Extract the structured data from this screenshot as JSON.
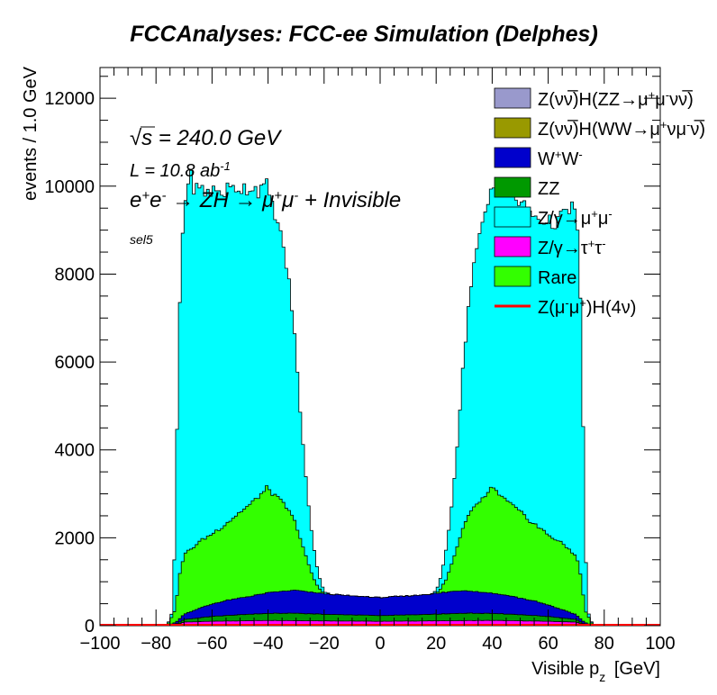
{
  "chart_data": {
    "type": "stacked-histogram",
    "title": "FCCAnalyses: FCC-ee Simulation (Delphes)",
    "xlabel": "Visible p",
    "xlabel_sub": "z",
    "xlabel_unit": "[GeV]",
    "ylabel": "events / 1.0 GeV",
    "xlim": [
      -100,
      100
    ],
    "ylim": [
      0,
      12700
    ],
    "x_ticks": [
      "−100",
      "−80",
      "−60",
      "−40",
      "−20",
      "0",
      "20",
      "40",
      "60",
      "80",
      "100"
    ],
    "y_ticks": [
      "0",
      "2000",
      "4000",
      "6000",
      "8000",
      "10000",
      "12000"
    ],
    "annotations": {
      "sqrt_s": "s = 240.0 GeV",
      "lumi": "L = 10.8 ab",
      "lumi_exp": "-1",
      "process_html": "e<tspan baseline-shift=\"super\" font-size=\"15\">+</tspan>e<tspan baseline-shift=\"super\" font-size=\"15\">-</tspan> → ZH → μ<tspan baseline-shift=\"super\" font-size=\"15\">+</tspan>μ<tspan baseline-shift=\"super\" font-size=\"15\">-</tspan> + Invisible",
      "selection": "sel5"
    },
    "legend_position": "top-right",
    "legend": [
      {
        "label_html": "Z(νν̅)H(ZZ→μ<tspan baseline-shift=\"super\" font-size=\"13\">+</tspan>μ<tspan baseline-shift=\"super\" font-size=\"13\">-</tspan>νν̅)",
        "color": "#9999cc",
        "kind": "box"
      },
      {
        "label_html": "Z(νν̅)H(WW→μ<tspan baseline-shift=\"super\" font-size=\"13\">+</tspan>νμ<tspan baseline-shift=\"super\" font-size=\"13\">-</tspan>ν̅)",
        "color": "#999900",
        "kind": "box"
      },
      {
        "label_html": "W<tspan baseline-shift=\"super\" font-size=\"13\">+</tspan>W<tspan baseline-shift=\"super\" font-size=\"13\">-</tspan>",
        "color": "#0000cc",
        "kind": "box"
      },
      {
        "label_html": "ZZ",
        "color": "#009900",
        "kind": "box"
      },
      {
        "label_html": "Z/γ→μ<tspan baseline-shift=\"super\" font-size=\"13\">+</tspan>μ<tspan baseline-shift=\"super\" font-size=\"13\">-</tspan>",
        "color": "#00ffff",
        "kind": "box"
      },
      {
        "label_html": "Z/γ→τ<tspan baseline-shift=\"super\" font-size=\"13\">+</tspan>τ<tspan baseline-shift=\"super\" font-size=\"13\">-</tspan>",
        "color": "#ff00ff",
        "kind": "box"
      },
      {
        "label_html": "Rare",
        "color": "#33ff00",
        "kind": "box"
      },
      {
        "label_html": "Z(μ<tspan baseline-shift=\"super\" font-size=\"13\">-</tspan>μ<tspan baseline-shift=\"super\" font-size=\"13\">+</tspan>)H(4ν)",
        "color": "#ff0000",
        "kind": "line"
      }
    ],
    "series": [
      {
        "name": "Z/γ→τ+τ-",
        "color": "#ff00ff",
        "x": [
          -76,
          -73,
          -70,
          -60,
          -50,
          -40,
          -30,
          -20,
          -10,
          0,
          10,
          20,
          30,
          40,
          50,
          60,
          70,
          73,
          76
        ],
        "y": [
          0,
          20,
          80,
          100,
          110,
          120,
          115,
          110,
          105,
          100,
          105,
          110,
          115,
          120,
          110,
          100,
          80,
          20,
          0
        ]
      },
      {
        "name": "ZZ",
        "color": "#009900",
        "x": [
          -76,
          -73,
          -70,
          -60,
          -50,
          -40,
          -30,
          -20,
          -10,
          0,
          10,
          20,
          30,
          40,
          50,
          60,
          70,
          73,
          76
        ],
        "y": [
          0,
          10,
          60,
          110,
          140,
          160,
          170,
          150,
          140,
          130,
          140,
          150,
          170,
          160,
          140,
          110,
          60,
          10,
          0
        ]
      },
      {
        "name": "W+W-",
        "color": "#0000cc",
        "x": [
          -76,
          -72,
          -70,
          -65,
          -60,
          -55,
          -50,
          -45,
          -40,
          -35,
          -30,
          -25,
          -20,
          -15,
          -10,
          -5,
          0,
          5,
          10,
          15,
          20,
          25,
          30,
          35,
          40,
          45,
          50,
          55,
          60,
          65,
          70,
          72,
          76
        ],
        "y": [
          0,
          60,
          120,
          210,
          280,
          340,
          380,
          420,
          470,
          500,
          520,
          490,
          470,
          450,
          430,
          420,
          410,
          420,
          430,
          450,
          470,
          500,
          520,
          490,
          460,
          430,
          380,
          330,
          260,
          190,
          110,
          60,
          0
        ]
      },
      {
        "name": "Rare",
        "color": "#33ff00",
        "x": [
          -76,
          -73,
          -72,
          -70,
          -65,
          -60,
          -55,
          -50,
          -45,
          -40,
          -38,
          -36,
          -34,
          -32,
          -30,
          -28,
          -26,
          -24,
          -22,
          -20,
          -15,
          -10,
          -5,
          0,
          5,
          10,
          15,
          20,
          22,
          24,
          26,
          28,
          30,
          32,
          34,
          36,
          38,
          40,
          45,
          50,
          55,
          60,
          65,
          70,
          72,
          73,
          76
        ],
        "y": [
          0,
          300,
          900,
          1350,
          1500,
          1600,
          1750,
          1950,
          2150,
          2400,
          2200,
          2100,
          1950,
          1750,
          1500,
          1100,
          700,
          350,
          120,
          0,
          0,
          0,
          0,
          0,
          0,
          0,
          0,
          0,
          120,
          350,
          700,
          1100,
          1500,
          1750,
          1950,
          2100,
          2200,
          2400,
          2150,
          1950,
          1750,
          1600,
          1500,
          1350,
          900,
          300,
          0
        ]
      },
      {
        "name": "Z/γ→μ+μ-",
        "color": "#00ffff",
        "x": [
          -76,
          -74,
          -73,
          -72,
          -71,
          -70,
          -68,
          -65,
          -60,
          -55,
          -50,
          -45,
          -40,
          -38,
          -36,
          -34,
          -32,
          -30,
          -28,
          -26,
          -24,
          -22,
          -20,
          -18,
          -15,
          -10,
          -5,
          0,
          5,
          10,
          15,
          18,
          20,
          22,
          24,
          26,
          28,
          30,
          32,
          34,
          36,
          38,
          40,
          45,
          50,
          55,
          60,
          65,
          68,
          70,
          71,
          72,
          73,
          74,
          76
        ],
        "y": [
          0,
          100,
          2200,
          5400,
          6900,
          8000,
          8500,
          8000,
          7800,
          7600,
          7400,
          7100,
          6800,
          6500,
          6100,
          5700,
          5000,
          3900,
          2600,
          1500,
          800,
          300,
          50,
          0,
          0,
          0,
          0,
          0,
          0,
          0,
          0,
          0,
          50,
          300,
          800,
          1500,
          2600,
          3900,
          5000,
          5700,
          6100,
          6500,
          6800,
          7100,
          7000,
          7000,
          7100,
          7400,
          7800,
          8000,
          6900,
          5400,
          2200,
          100,
          0
        ]
      },
      {
        "name": "W+W- (upper)",
        "color": "#0000cc",
        "x": [
          -70,
          -65,
          -60,
          -55,
          -50,
          -45,
          -40,
          -35,
          -30,
          -25,
          -20,
          -15,
          -10,
          -5,
          0,
          5,
          10,
          15,
          20,
          25,
          30,
          35,
          40,
          45,
          50,
          55,
          60,
          65,
          70
        ],
        "y": [
          0,
          0,
          0,
          0,
          0,
          0,
          0,
          0,
          0,
          0,
          0,
          0,
          0,
          0,
          0,
          0,
          0,
          0,
          0,
          0,
          0,
          0,
          0,
          0,
          0,
          0,
          0,
          0,
          0
        ]
      }
    ]
  }
}
